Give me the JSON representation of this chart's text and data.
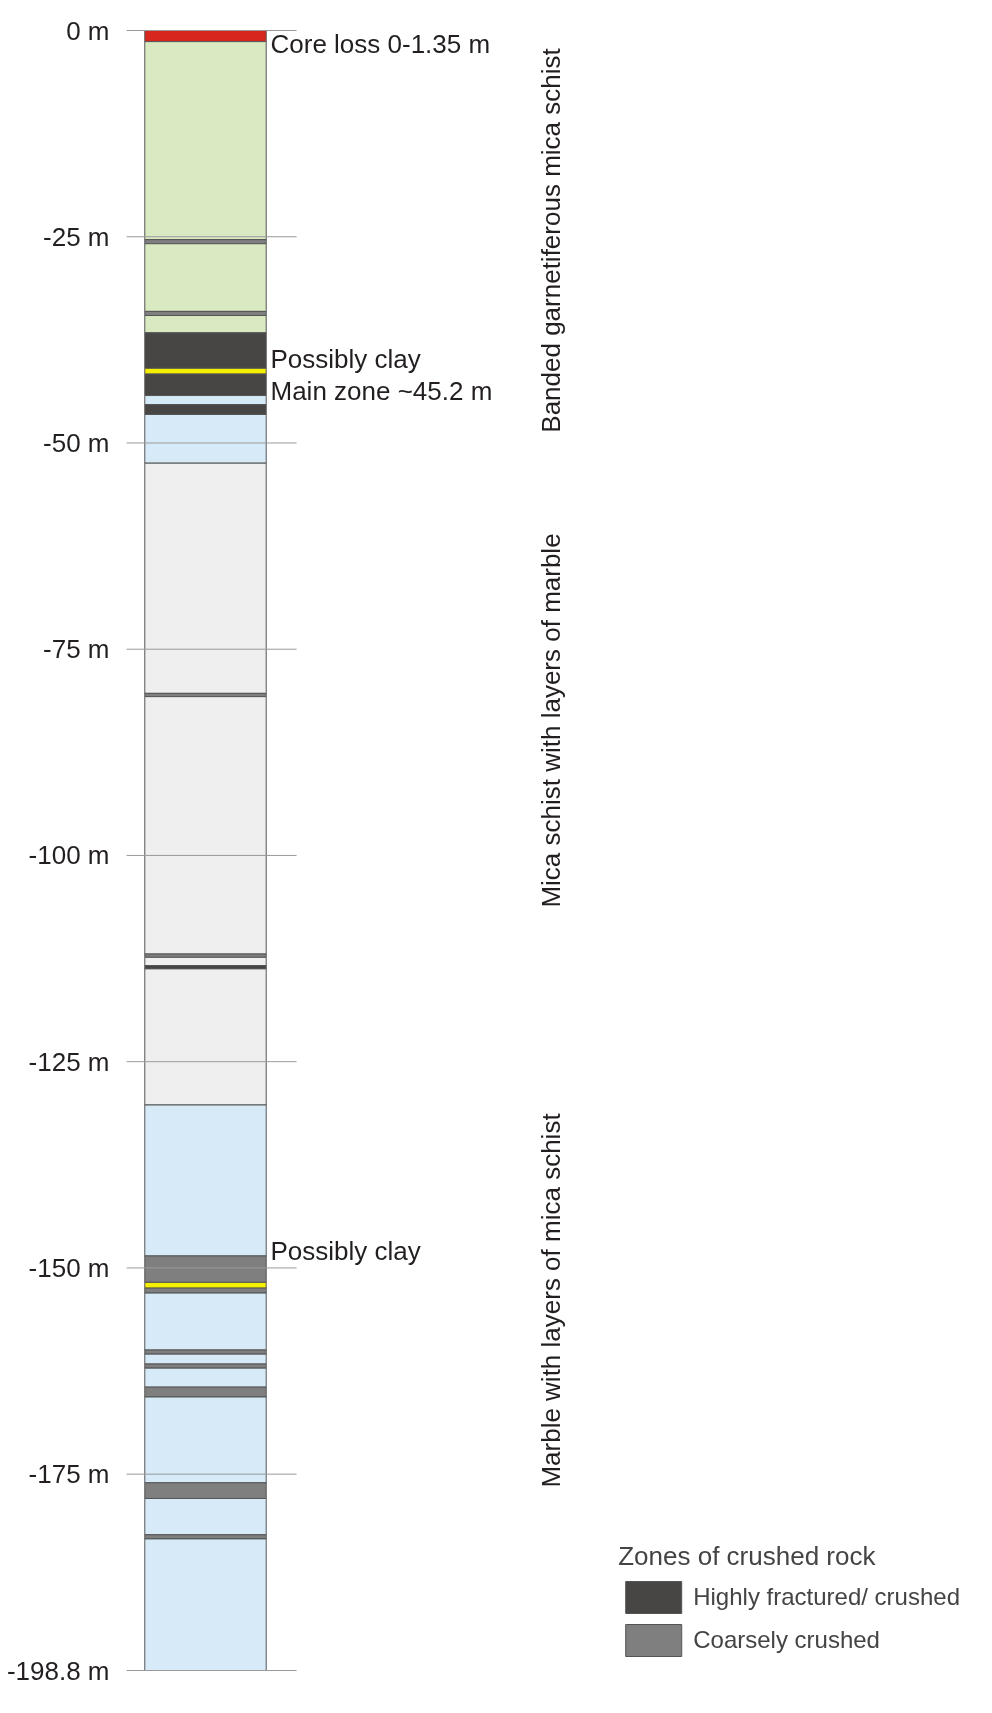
{
  "chart_data": {
    "type": "bar",
    "stacked": true,
    "categories": [
      null
    ],
    "ylim": [
      -198.8,
      0
    ],
    "yticks": [
      {
        "value": 0,
        "label": "0 m"
      },
      {
        "value": -25,
        "label": "-25 m"
      },
      {
        "value": -50,
        "label": "-50 m"
      },
      {
        "value": -75,
        "label": "-75 m"
      },
      {
        "value": -100,
        "label": "-100 m"
      },
      {
        "value": -125,
        "label": "-125 m"
      },
      {
        "value": -150,
        "label": "-150 m"
      },
      {
        "value": -175,
        "label": "-175 m"
      },
      {
        "value": -198.8,
        "label": "-198.8 m"
      }
    ],
    "grid": "y",
    "legend": "bottom right",
    "legend_title": "Zones of crushed rock",
    "series": [
      {
        "color": "#d7261e",
        "values": [
          -1.35
        ]
      },
      {
        "color": "#d9eac3",
        "values": [
          -24.0
        ]
      },
      {
        "color": "#7f7f7f",
        "values": [
          -0.5
        ]
      },
      {
        "color": "#d9eac3",
        "values": [
          -8.2
        ]
      },
      {
        "color": "#7f7f7f",
        "values": [
          -0.5
        ]
      },
      {
        "color": "#d9eac3",
        "values": [
          -2.1
        ]
      },
      {
        "name": "Highly fractured/ crushed",
        "color": "#484545",
        "values": [
          -4.3
        ]
      },
      {
        "color": "#f5ef00",
        "values": [
          -0.7
        ]
      },
      {
        "color": "#484545",
        "values": [
          -2.6
        ]
      },
      {
        "color": "#d6ebf7",
        "values": [
          -1.1
        ]
      },
      {
        "color": "#484545",
        "values": [
          -1.2
        ]
      },
      {
        "color": "#d6ebf7",
        "values": [
          -5.9
        ]
      },
      {
        "color": "#efefef",
        "values": [
          -27.9
        ]
      },
      {
        "color": "#7f7f7f",
        "values": [
          -0.4
        ]
      },
      {
        "color": "#efefef",
        "values": [
          -31.2
        ]
      },
      {
        "color": "#7f7f7f",
        "values": [
          -0.4
        ]
      },
      {
        "color": "#efefef",
        "values": [
          -1.0
        ]
      },
      {
        "color": "#484545",
        "values": [
          -0.4
        ]
      },
      {
        "color": "#efefef",
        "values": [
          -16.5
        ]
      },
      {
        "color": "#d6ebf7",
        "values": [
          -18.3
        ]
      },
      {
        "name": "Coarsely crushed",
        "color": "#7f7f7f",
        "values": [
          -3.2
        ]
      },
      {
        "color": "#f5ef00",
        "values": [
          -0.7
        ]
      },
      {
        "color": "#7f7f7f",
        "values": [
          -0.6
        ]
      },
      {
        "color": "#d6ebf7",
        "values": [
          -6.9
        ]
      },
      {
        "color": "#7f7f7f",
        "values": [
          -0.5
        ]
      },
      {
        "color": "#d6ebf7",
        "values": [
          -1.2
        ]
      },
      {
        "color": "#7f7f7f",
        "values": [
          -0.5
        ]
      },
      {
        "color": "#d6ebf7",
        "values": [
          -2.3
        ]
      },
      {
        "color": "#7f7f7f",
        "values": [
          -1.2
        ]
      },
      {
        "color": "#d6ebf7",
        "values": [
          -10.4
        ]
      },
      {
        "color": "#7f7f7f",
        "values": [
          -1.9
        ]
      },
      {
        "color": "#d6ebf7",
        "values": [
          -4.4
        ]
      },
      {
        "color": "#7f7f7f",
        "values": [
          -0.5
        ]
      },
      {
        "color": "#d6ebf7",
        "values": [
          -16.0
        ]
      }
    ],
    "annotations": [
      "Core loss 0-1.35 m",
      "Possibly clay",
      "Main  zone ~45.2 m",
      "Possibly clay",
      "Banded garnetiferous mica schist",
      "Mica schist with layers of marble",
      "Marble with layers of mica schist"
    ]
  }
}
